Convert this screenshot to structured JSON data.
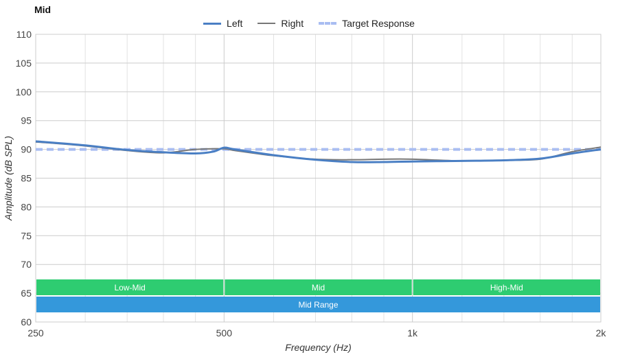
{
  "chart_data": {
    "type": "line",
    "title": "Mid",
    "xlabel": "Frequency (Hz)",
    "ylabel": "Amplitude (dB SPL)",
    "x_scale": "log",
    "xlim": [
      250,
      2000
    ],
    "ylim": [
      60,
      110
    ],
    "grid": true,
    "legend_position": "top-center",
    "x_ticks": [
      {
        "value": 250,
        "label": "250"
      },
      {
        "value": 500,
        "label": "500"
      },
      {
        "value": 1000,
        "label": "1k"
      },
      {
        "value": 2000,
        "label": "2k"
      }
    ],
    "y_ticks": [
      60,
      65,
      70,
      75,
      80,
      85,
      90,
      95,
      100,
      105,
      110
    ],
    "series": [
      {
        "name": "Left",
        "color": "#4a7fc4",
        "style": "solid-thick",
        "x": [
          250,
          300,
          350,
          400,
          450,
          480,
          500,
          520,
          600,
          700,
          800,
          900,
          1000,
          1200,
          1400,
          1600,
          1800,
          2000
        ],
        "y": [
          91.4,
          90.7,
          89.9,
          89.5,
          89.3,
          89.6,
          90.3,
          90.0,
          89.0,
          88.2,
          87.8,
          87.8,
          87.9,
          88.0,
          88.1,
          88.4,
          89.3,
          90.0
        ]
      },
      {
        "name": "Right",
        "color": "#777777",
        "style": "solid-thin",
        "x": [
          250,
          300,
          350,
          400,
          450,
          500,
          520,
          600,
          700,
          800,
          900,
          1000,
          1200,
          1400,
          1600,
          1800,
          2000
        ],
        "y": [
          91.3,
          90.6,
          89.8,
          89.4,
          90.0,
          90.1,
          89.8,
          88.9,
          88.3,
          88.2,
          88.3,
          88.3,
          88.0,
          88.1,
          88.3,
          89.6,
          90.4
        ]
      },
      {
        "name": "Target Response",
        "color": "#a9bdf2",
        "style": "dashed",
        "x": [
          250,
          2000
        ],
        "y": [
          90,
          90
        ]
      }
    ],
    "bands": [
      {
        "label": "Low-Mid",
        "from": 250,
        "to": 500,
        "color": "#2ecc71",
        "row": 1
      },
      {
        "label": "Mid",
        "from": 500,
        "to": 1000,
        "color": "#2ecc71",
        "row": 1
      },
      {
        "label": "High-Mid",
        "from": 1000,
        "to": 2000,
        "color": "#2ecc71",
        "row": 1
      },
      {
        "label": "Mid Range",
        "from": 250,
        "to": 2000,
        "color": "#3498db",
        "row": 2
      }
    ]
  }
}
